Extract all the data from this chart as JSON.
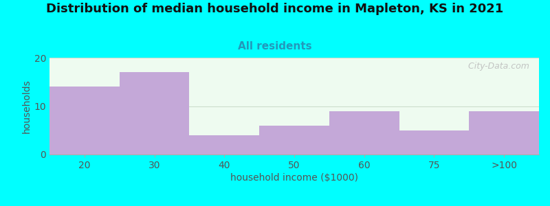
{
  "title": "Distribution of median household income in Mapleton, KS in 2021",
  "subtitle": "All residents",
  "xlabel": "household income ($1000)",
  "ylabel": "households",
  "background_color": "#00FFFF",
  "plot_bg_color": "#eefbf0",
  "bar_color": "#c4a8d8",
  "categories": [
    "20",
    "30",
    "40",
    "50",
    "60",
    "75",
    ">100"
  ],
  "values": [
    14,
    17,
    4,
    6,
    9,
    5,
    9
  ],
  "ylim": [
    0,
    20
  ],
  "yticks": [
    0,
    10,
    20
  ],
  "watermark": "  City-Data.com",
  "title_fontsize": 13,
  "subtitle_fontsize": 11,
  "axis_label_fontsize": 10,
  "tick_fontsize": 10,
  "title_color": "#111111",
  "subtitle_color": "#2299bb",
  "axis_color": "#555555",
  "watermark_color": "#bbbbbb",
  "grid_color": "#ccddcc",
  "spine_color": "#aaaaaa"
}
